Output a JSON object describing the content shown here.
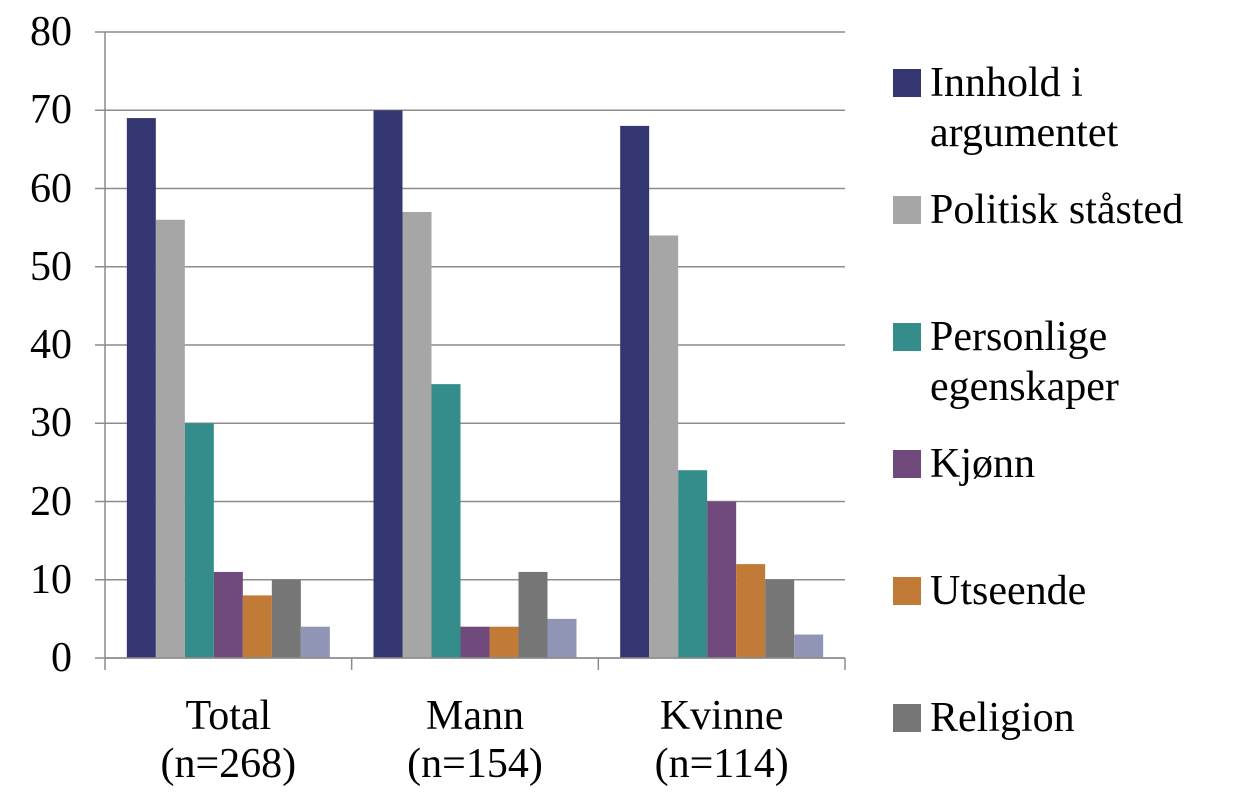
{
  "chart_data": {
    "type": "bar",
    "categories": [
      "Total\n(n=268)",
      "Mann\n(n=154)",
      "Kvinne\n(n=114)"
    ],
    "series": [
      {
        "name": "Innhold i\nargumentet",
        "color": "#333670",
        "values": [
          69,
          70,
          68
        ]
      },
      {
        "name": "Politisk ståsted",
        "color": "#a6a6a6",
        "values": [
          56,
          57,
          54
        ]
      },
      {
        "name": "Personlige\negenskaper",
        "color": "#358d8b",
        "values": [
          30,
          35,
          24
        ]
      },
      {
        "name": "Kjønn",
        "color": "#704a7d",
        "values": [
          11,
          4,
          20
        ]
      },
      {
        "name": "Utseende",
        "color": "#c27a37",
        "values": [
          8,
          4,
          12
        ]
      },
      {
        "name": "Religion",
        "color": "#767676",
        "values": [
          10,
          11,
          10
        ]
      },
      {
        "color": "#9095b5",
        "values": [
          4,
          5,
          3
        ]
      }
    ],
    "ylim": [
      0,
      80
    ],
    "yticks": [
      0,
      10,
      20,
      30,
      40,
      50,
      60,
      70,
      80
    ],
    "grid": true,
    "legend": "right"
  }
}
